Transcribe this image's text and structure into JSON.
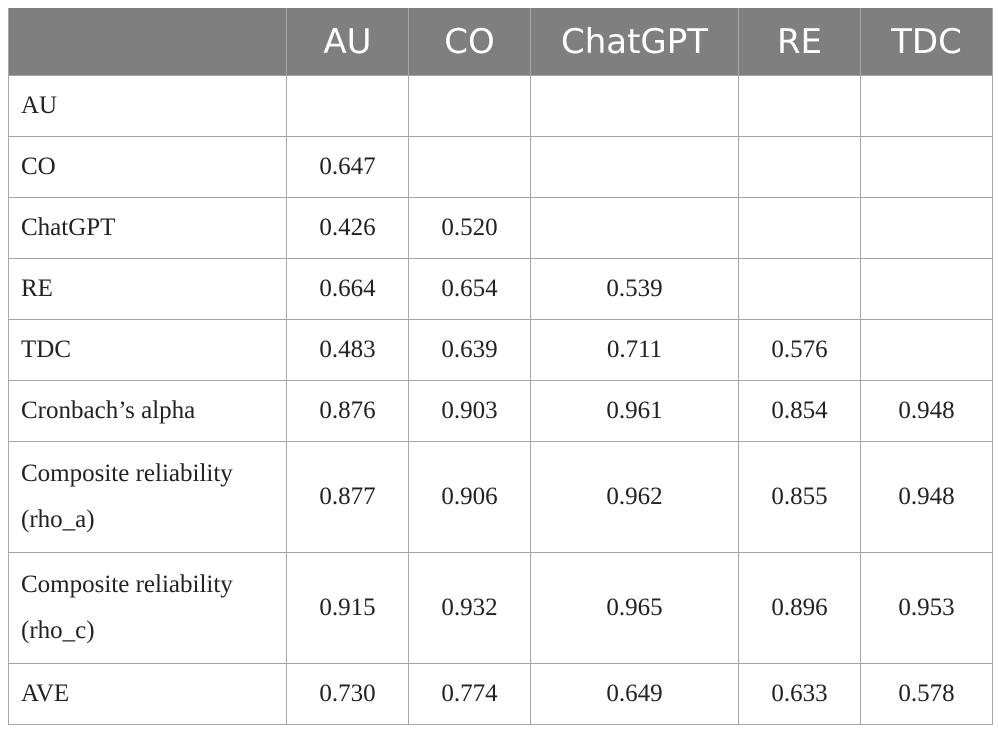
{
  "table": {
    "columns": [
      "",
      "AU",
      "CO",
      "ChatGPT",
      "RE",
      "TDC"
    ],
    "rows": [
      {
        "label": "AU",
        "cells": [
          "",
          "",
          "",
          "",
          ""
        ]
      },
      {
        "label": "CO",
        "cells": [
          "0.647",
          "",
          "",
          "",
          ""
        ]
      },
      {
        "label": "ChatGPT",
        "cells": [
          "0.426",
          "0.520",
          "",
          "",
          ""
        ]
      },
      {
        "label": "RE",
        "cells": [
          "0.664",
          "0.654",
          "0.539",
          "",
          ""
        ]
      },
      {
        "label": "TDC",
        "cells": [
          "0.483",
          "0.639",
          "0.711",
          "0.576",
          ""
        ]
      },
      {
        "label": "Cronbach’s alpha",
        "cells": [
          "0.876",
          "0.903",
          "0.961",
          "0.854",
          "0.948"
        ]
      },
      {
        "label": "Composite reliability (rho_a)",
        "cells": [
          "0.877",
          "0.906",
          "0.962",
          "0.855",
          "0.948"
        ]
      },
      {
        "label": "Composite reliability (rho_c)",
        "cells": [
          "0.915",
          "0.932",
          "0.965",
          "0.896",
          "0.953"
        ]
      },
      {
        "label": "AVE",
        "cells": [
          "0.730",
          "0.774",
          "0.649",
          "0.633",
          "0.578"
        ]
      }
    ]
  }
}
